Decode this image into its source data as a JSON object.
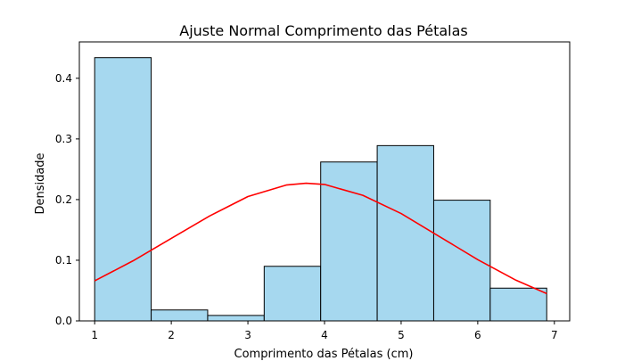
{
  "chart_data": {
    "type": "bar",
    "title": "Ajuste Normal Comprimento das Pétalas",
    "xlabel": "Comprimento das Pétalas (cm)",
    "ylabel": "Densidade",
    "xlim": [
      0.8,
      7.2
    ],
    "ylim": [
      0,
      0.46
    ],
    "xticks": [
      1,
      2,
      3,
      4,
      5,
      6,
      7
    ],
    "yticks": [
      0.0,
      0.1,
      0.2,
      0.3,
      0.4
    ],
    "ytick_labels": [
      "0.0",
      "0.1",
      "0.2",
      "0.3",
      "0.4"
    ],
    "grid": false,
    "histogram": {
      "bin_edges": [
        1.0,
        1.7375,
        2.475,
        3.2125,
        3.95,
        4.6875,
        5.425,
        6.1625,
        6.9
      ],
      "densities": [
        0.434,
        0.018,
        0.009,
        0.09,
        0.262,
        0.289,
        0.199,
        0.054
      ],
      "fill_color": "#a6d8ef",
      "edge_color": "#000000"
    },
    "series": [
      {
        "type": "line",
        "color": "#ff0000",
        "x": [
          1.0,
          1.5,
          2.0,
          2.5,
          3.0,
          3.5,
          3.76,
          4.0,
          4.5,
          5.0,
          5.5,
          6.0,
          6.5,
          6.9
        ],
        "y": [
          0.066,
          0.099,
          0.136,
          0.173,
          0.205,
          0.224,
          0.227,
          0.225,
          0.207,
          0.177,
          0.139,
          0.101,
          0.067,
          0.045
        ]
      }
    ]
  }
}
